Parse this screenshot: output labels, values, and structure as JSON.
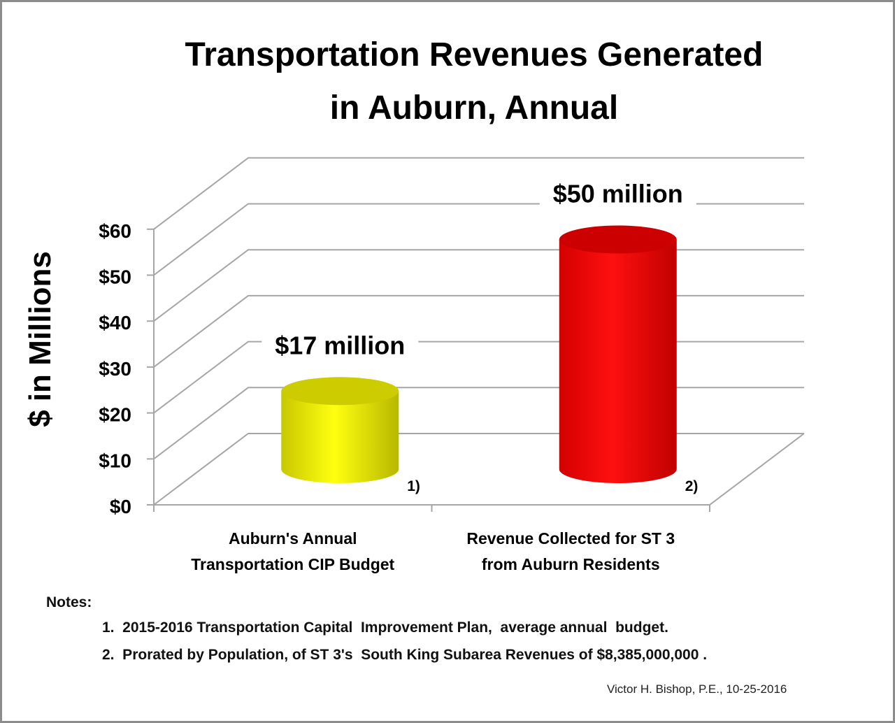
{
  "chart_data": {
    "type": "bar",
    "style": "3d-cylinder",
    "title_lines": [
      "Transportation Revenues Generated",
      "in Auburn, Annual"
    ],
    "ylabel": "$ in Millions",
    "xlabel": "",
    "ylim": [
      0,
      60
    ],
    "yticks": [
      0,
      10,
      20,
      30,
      40,
      50,
      60
    ],
    "ytick_labels": [
      "$0",
      "$10",
      "$20",
      "$30",
      "$40",
      "$50",
      "$60"
    ],
    "grid": true,
    "categories": [
      [
        "Auburn's Annual",
        "Transportation CIP Budget"
      ],
      [
        "Revenue Collected for ST 3",
        "from Auburn Residents"
      ]
    ],
    "values": [
      17,
      50
    ],
    "colors": [
      "#ffff00",
      "#ff0000"
    ],
    "data_labels": [
      "$17 million",
      "$50 million"
    ],
    "footnote_marks": [
      "1)",
      "2)"
    ]
  },
  "notes": {
    "heading": "Notes:",
    "items": [
      "1.  2015-2016 Transportation Capital  Improvement Plan,  average annual  budget.",
      "2.  Prorated by Population, of ST 3's  South King Subarea Revenues of $8,385,000,000 ."
    ]
  },
  "credit": "Victor H. Bishop, P.E., 10-25-2016"
}
